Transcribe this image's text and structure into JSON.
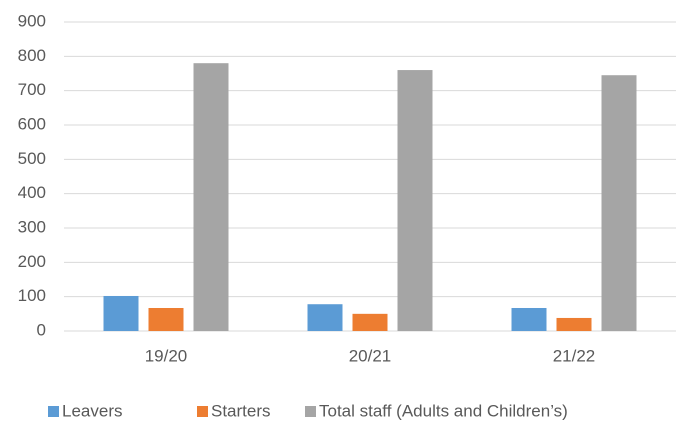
{
  "chart_data": {
    "type": "bar",
    "categories": [
      "19/20",
      "20/21",
      "21/22"
    ],
    "series": [
      {
        "name": "Leavers",
        "color": "#5b9bd5",
        "values": [
          102,
          78,
          67
        ]
      },
      {
        "name": "Starters",
        "color": "#ed7d31",
        "values": [
          67,
          50,
          38
        ]
      },
      {
        "name": "Total staff (Adults and Children’s)",
        "color": "#a5a5a5",
        "values": [
          780,
          760,
          745
        ]
      }
    ],
    "ylim": [
      0,
      900
    ],
    "yticks": [
      0,
      100,
      200,
      300,
      400,
      500,
      600,
      700,
      800,
      900
    ],
    "grid": true,
    "legend": "bottom"
  }
}
